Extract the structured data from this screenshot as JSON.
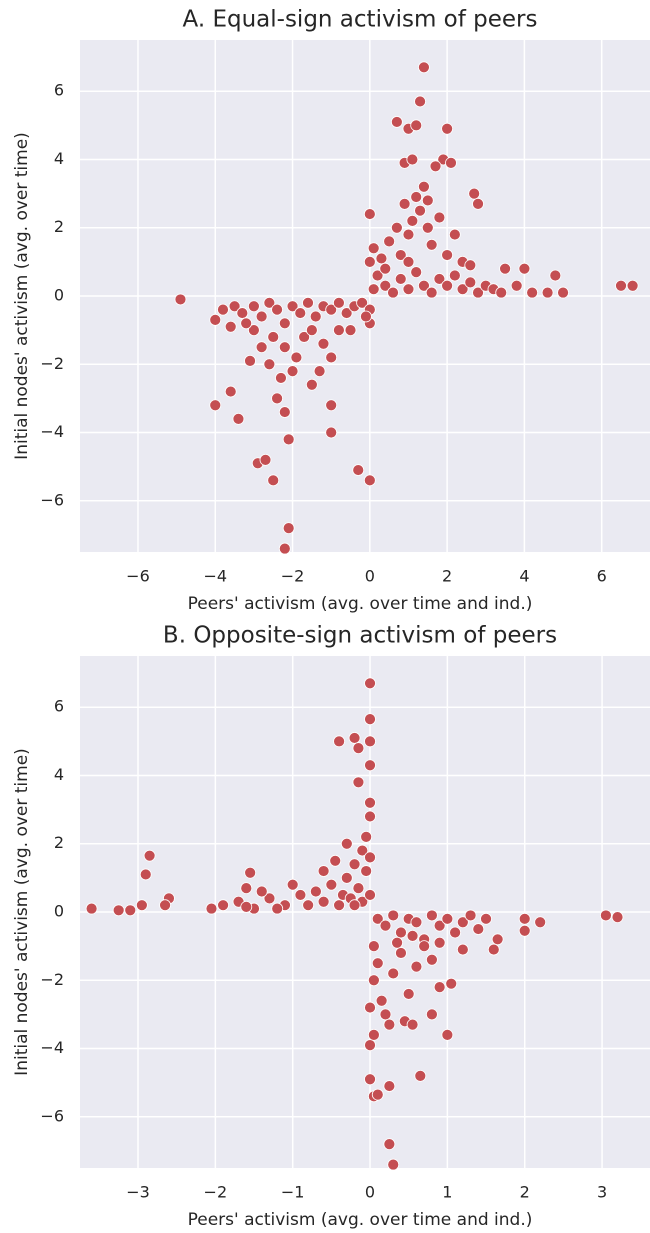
{
  "chart_data": [
    {
      "type": "scatter",
      "title": "A. Equal-sign activism of peers",
      "xlabel": "Peers' activism (avg. over time and ind.)",
      "ylabel": "Initial nodes' activism (avg. over time)",
      "color": "#c44e52",
      "grid": true,
      "xlim": [
        -7.5,
        7.25
      ],
      "ylim": [
        -7.5,
        7.5
      ],
      "xticks": [
        {
          "value": -6,
          "label": "−6"
        },
        {
          "value": -4,
          "label": "−4"
        },
        {
          "value": -2,
          "label": "−2"
        },
        0,
        2,
        4,
        6
      ],
      "yticks": [
        {
          "value": -6,
          "label": "−6"
        },
        {
          "value": -4,
          "label": "−4"
        },
        {
          "value": -2,
          "label": "−2"
        },
        0,
        2,
        4,
        6
      ],
      "x": [
        -4.9,
        -4,
        -3.4,
        -2.9,
        -2.7,
        -2.5,
        -2.1,
        -2.2,
        -2.1,
        -0.3,
        0,
        -1.0,
        -1.0,
        -3.6,
        -3.1,
        1.4,
        1.3,
        0.7,
        1.0,
        1.2,
        2.0,
        0.9,
        1.1,
        1.9,
        2.1,
        1.7,
        0,
        2.7,
        2.8,
        4.8,
        4.0,
        5.0,
        6.5,
        6.8,
        3.5,
        4.6,
        -3.8,
        -3.5,
        -3.3,
        -3.0,
        -2.8,
        -2.6,
        -2.4,
        -2.2,
        -2.0,
        -1.8,
        -1.6,
        -1.4,
        -1.2,
        -1.0,
        -0.8,
        -0.6,
        -0.4,
        -0.2,
        0,
        0,
        -0.1,
        -2.5,
        -2.2,
        -1.9,
        -2.6,
        -2.3,
        -2.0,
        -1.7,
        -1.5,
        -2.8,
        -3.0,
        -1.2,
        -1.0,
        -0.8,
        -1.5,
        -2.4,
        -2.2,
        -1.3,
        -0.5,
        -3.6,
        -4.0,
        -3.2,
        0.1,
        0.2,
        0.4,
        0.6,
        0.8,
        1.0,
        1.2,
        1.4,
        1.6,
        1.8,
        2.0,
        2.2,
        2.4,
        2.6,
        2.8,
        3.0,
        3.2,
        3.4,
        3.8,
        4.2,
        0,
        0.1,
        0.3,
        0.5,
        0.8,
        1.0,
        1.1,
        1.3,
        1.5,
        1.2,
        1.4,
        0.9,
        1.6,
        1.8,
        2.0,
        2.2,
        0.7,
        1.5,
        2.4,
        2.6,
        1.0,
        0.4
      ],
      "y": [
        -0.1,
        -3.2,
        -3.6,
        -4.9,
        -4.8,
        -5.4,
        -6.8,
        -7.4,
        -4.2,
        -5.1,
        -5.4,
        -4.0,
        -3.2,
        -2.8,
        -1.9,
        6.7,
        5.7,
        5.1,
        4.9,
        5.0,
        4.9,
        3.9,
        4.0,
        4.0,
        3.9,
        3.8,
        2.4,
        3.0,
        2.7,
        0.6,
        0.8,
        0.1,
        0.3,
        0.3,
        0.8,
        0.1,
        -0.4,
        -0.3,
        -0.5,
        -0.3,
        -0.6,
        -0.2,
        -0.4,
        -0.8,
        -0.3,
        -0.5,
        -0.2,
        -0.6,
        -0.3,
        -0.4,
        -0.2,
        -0.5,
        -0.3,
        -0.2,
        -0.4,
        -0.8,
        -0.6,
        -1.2,
        -1.5,
        -1.8,
        -2.0,
        -2.4,
        -2.2,
        -1.2,
        -1.0,
        -1.5,
        -1.0,
        -1.4,
        -1.8,
        -1.0,
        -2.6,
        -3.0,
        -3.4,
        -2.2,
        -1.0,
        -0.9,
        -0.7,
        -0.8,
        0.2,
        0.6,
        0.3,
        0.1,
        0.5,
        0.2,
        0.7,
        0.3,
        0.1,
        0.5,
        0.3,
        0.6,
        0.2,
        0.4,
        0.1,
        0.3,
        0.2,
        0.1,
        0.3,
        0.1,
        1.0,
        1.4,
        1.1,
        1.6,
        1.2,
        1.8,
        2.2,
        2.5,
        2.0,
        2.9,
        3.2,
        2.7,
        1.5,
        2.3,
        1.2,
        1.8,
        2.0,
        2.8,
        1.0,
        0.9,
        1.0,
        0.8
      ]
    },
    {
      "type": "scatter",
      "title": "B. Opposite-sign activism of peers",
      "xlabel": "Peers' activism (avg. over time and ind.)",
      "ylabel": "Initial nodes' activism (avg. over time)",
      "color": "#c44e52",
      "grid": true,
      "xlim": [
        -3.75,
        3.62
      ],
      "ylim": [
        -7.5,
        7.5
      ],
      "xticks": [
        {
          "value": -3,
          "label": "−3"
        },
        {
          "value": -2,
          "label": "−2"
        },
        {
          "value": -1,
          "label": "−1"
        },
        0,
        1,
        2,
        3
      ],
      "yticks": [
        {
          "value": -6,
          "label": "−6"
        },
        {
          "value": -4,
          "label": "−4"
        },
        {
          "value": -2,
          "label": "−2"
        },
        0,
        2,
        4,
        6
      ],
      "x": [
        -3.6,
        -3.25,
        -3.1,
        -2.95,
        -2.9,
        -2.85,
        -2.6,
        -2.65,
        -2.05,
        -1.55,
        -1.6,
        3.05,
        3.2,
        2.2,
        2.0,
        2.0,
        1.65,
        1.6,
        0,
        0,
        -0.4,
        -0.2,
        -0.15,
        0,
        -0.15,
        0,
        0.3,
        0.25,
        0.05,
        0.1,
        0,
        0.25,
        0.65,
        1.0,
        0.9,
        1.05,
        0.45,
        0.55,
        0.8,
        0,
        0.05,
        -1.9,
        -1.7,
        -1.5,
        -1.3,
        -1.1,
        -0.9,
        -0.8,
        -0.7,
        -0.6,
        -0.5,
        -0.4,
        -0.35,
        -0.3,
        -0.25,
        -0.2,
        -0.15,
        -0.1,
        -0.1,
        -0.05,
        -0.05,
        0,
        0,
        0,
        -0.2,
        -1.0,
        -1.4,
        -0.6,
        -0.45,
        -0.3,
        0,
        -1.6,
        -1.2,
        0.1,
        0.2,
        0.3,
        0.4,
        0.5,
        0.6,
        0.7,
        0.8,
        0.9,
        1.0,
        1.1,
        1.2,
        1.3,
        1.4,
        1.5,
        0.05,
        0.1,
        0.05,
        0.15,
        0.2,
        0.3,
        0.4,
        0.5,
        0.6,
        0.7,
        0.8,
        0.35,
        0,
        0.25,
        1.2,
        0.9,
        0.55
      ],
      "y": [
        0.1,
        0.05,
        0.05,
        0.2,
        1.1,
        1.65,
        0.4,
        0.2,
        0.1,
        1.15,
        0.7,
        -0.1,
        -0.15,
        -0.3,
        -0.55,
        -0.2,
        -0.8,
        -1.1,
        6.7,
        5.65,
        5.0,
        5.1,
        4.8,
        5.0,
        3.8,
        4.3,
        -7.4,
        -6.8,
        -5.4,
        -5.35,
        -4.9,
        -5.1,
        -4.8,
        -3.6,
        -2.2,
        -2.1,
        -3.2,
        -3.3,
        -3.0,
        -3.9,
        -3.6,
        0.2,
        0.3,
        0.1,
        0.4,
        0.2,
        0.5,
        0.2,
        0.6,
        0.3,
        0.8,
        0.2,
        0.5,
        1.0,
        0.4,
        1.4,
        0.7,
        1.8,
        0.3,
        2.2,
        1.2,
        2.8,
        3.2,
        1.6,
        0.2,
        0.8,
        0.6,
        1.2,
        1.5,
        2.0,
        0.5,
        0.15,
        0.1,
        -0.2,
        -0.4,
        -0.1,
        -0.6,
        -0.2,
        -0.3,
        -0.8,
        -0.1,
        -0.4,
        -0.2,
        -0.6,
        -0.3,
        -0.1,
        -0.5,
        -0.2,
        -1.0,
        -1.5,
        -2.0,
        -2.6,
        -3.0,
        -1.8,
        -1.2,
        -2.4,
        -1.6,
        -1.0,
        -1.4,
        -0.9,
        -2.8,
        -3.3,
        -1.1,
        -0.9,
        -0.7
      ]
    }
  ]
}
